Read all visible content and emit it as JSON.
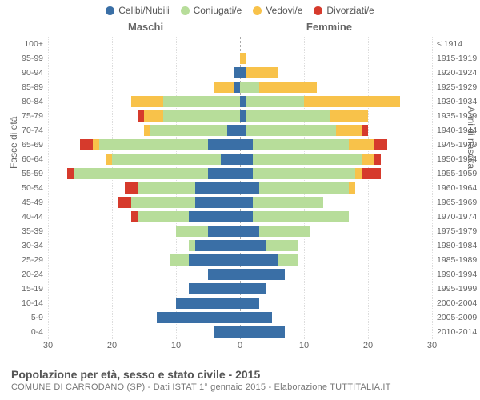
{
  "chart": {
    "type": "population-pyramid",
    "background_color": "#ffffff",
    "grid_color": "#dddddd",
    "axis_dash_color": "#aaaaaa",
    "text_color": "#666666",
    "legend": [
      {
        "label": "Celibi/Nubili",
        "color": "#3a6fa6"
      },
      {
        "label": "Coniugati/e",
        "color": "#b7dd9a"
      },
      {
        "label": "Vedovi/e",
        "color": "#f8c24a"
      },
      {
        "label": "Divorziati/e",
        "color": "#d63a2c"
      }
    ],
    "gender_labels": {
      "male": "Maschi",
      "female": "Femmine"
    },
    "y_left_title": "Fasce di età",
    "y_right_title": "Anni di nascita",
    "x_max": 30,
    "x_ticks": [
      30,
      20,
      10,
      0,
      10,
      20,
      30
    ],
    "title": "Popolazione per età, sesso e stato civile - 2015",
    "subtitle": "COMUNE DI CARRODANO (SP) - Dati ISTAT 1° gennaio 2015 - Elaborazione TUTTITALIA.IT",
    "rows": [
      {
        "age": "100+",
        "birth": "≤ 1914",
        "m": {
          "c": 0,
          "co": 0,
          "v": 0,
          "d": 0
        },
        "f": {
          "c": 0,
          "co": 0,
          "v": 0,
          "d": 0
        }
      },
      {
        "age": "95-99",
        "birth": "1915-1919",
        "m": {
          "c": 0,
          "co": 0,
          "v": 0,
          "d": 0
        },
        "f": {
          "c": 0,
          "co": 0,
          "v": 1,
          "d": 0
        }
      },
      {
        "age": "90-94",
        "birth": "1920-1924",
        "m": {
          "c": 1,
          "co": 0,
          "v": 0,
          "d": 0
        },
        "f": {
          "c": 1,
          "co": 0,
          "v": 5,
          "d": 0
        }
      },
      {
        "age": "85-89",
        "birth": "1925-1929",
        "m": {
          "c": 1,
          "co": 0,
          "v": 3,
          "d": 0
        },
        "f": {
          "c": 0,
          "co": 3,
          "v": 9,
          "d": 0
        }
      },
      {
        "age": "80-84",
        "birth": "1930-1934",
        "m": {
          "c": 0,
          "co": 12,
          "v": 5,
          "d": 0
        },
        "f": {
          "c": 1,
          "co": 9,
          "v": 15,
          "d": 0
        }
      },
      {
        "age": "75-79",
        "birth": "1935-1939",
        "m": {
          "c": 0,
          "co": 12,
          "v": 3,
          "d": 1
        },
        "f": {
          "c": 1,
          "co": 13,
          "v": 6,
          "d": 0
        }
      },
      {
        "age": "70-74",
        "birth": "1940-1944",
        "m": {
          "c": 2,
          "co": 12,
          "v": 1,
          "d": 0
        },
        "f": {
          "c": 1,
          "co": 14,
          "v": 4,
          "d": 1
        }
      },
      {
        "age": "65-69",
        "birth": "1945-1949",
        "m": {
          "c": 5,
          "co": 17,
          "v": 1,
          "d": 2
        },
        "f": {
          "c": 2,
          "co": 15,
          "v": 4,
          "d": 2
        }
      },
      {
        "age": "60-64",
        "birth": "1950-1954",
        "m": {
          "c": 3,
          "co": 17,
          "v": 1,
          "d": 0
        },
        "f": {
          "c": 2,
          "co": 17,
          "v": 2,
          "d": 1
        }
      },
      {
        "age": "55-59",
        "birth": "1955-1959",
        "m": {
          "c": 5,
          "co": 21,
          "v": 0,
          "d": 1
        },
        "f": {
          "c": 2,
          "co": 16,
          "v": 1,
          "d": 3
        }
      },
      {
        "age": "50-54",
        "birth": "1960-1964",
        "m": {
          "c": 7,
          "co": 9,
          "v": 0,
          "d": 2
        },
        "f": {
          "c": 3,
          "co": 14,
          "v": 1,
          "d": 0
        }
      },
      {
        "age": "45-49",
        "birth": "1965-1969",
        "m": {
          "c": 7,
          "co": 10,
          "v": 0,
          "d": 2
        },
        "f": {
          "c": 2,
          "co": 11,
          "v": 0,
          "d": 0
        }
      },
      {
        "age": "40-44",
        "birth": "1970-1974",
        "m": {
          "c": 8,
          "co": 8,
          "v": 0,
          "d": 1
        },
        "f": {
          "c": 2,
          "co": 15,
          "v": 0,
          "d": 0
        }
      },
      {
        "age": "35-39",
        "birth": "1975-1979",
        "m": {
          "c": 5,
          "co": 5,
          "v": 0,
          "d": 0
        },
        "f": {
          "c": 3,
          "co": 8,
          "v": 0,
          "d": 0
        }
      },
      {
        "age": "30-34",
        "birth": "1980-1984",
        "m": {
          "c": 7,
          "co": 1,
          "v": 0,
          "d": 0
        },
        "f": {
          "c": 4,
          "co": 5,
          "v": 0,
          "d": 0
        }
      },
      {
        "age": "25-29",
        "birth": "1985-1989",
        "m": {
          "c": 8,
          "co": 3,
          "v": 0,
          "d": 0
        },
        "f": {
          "c": 6,
          "co": 3,
          "v": 0,
          "d": 0
        }
      },
      {
        "age": "20-24",
        "birth": "1990-1994",
        "m": {
          "c": 5,
          "co": 0,
          "v": 0,
          "d": 0
        },
        "f": {
          "c": 7,
          "co": 0,
          "v": 0,
          "d": 0
        }
      },
      {
        "age": "15-19",
        "birth": "1995-1999",
        "m": {
          "c": 8,
          "co": 0,
          "v": 0,
          "d": 0
        },
        "f": {
          "c": 4,
          "co": 0,
          "v": 0,
          "d": 0
        }
      },
      {
        "age": "10-14",
        "birth": "2000-2004",
        "m": {
          "c": 10,
          "co": 0,
          "v": 0,
          "d": 0
        },
        "f": {
          "c": 3,
          "co": 0,
          "v": 0,
          "d": 0
        }
      },
      {
        "age": "5-9",
        "birth": "2005-2009",
        "m": {
          "c": 13,
          "co": 0,
          "v": 0,
          "d": 0
        },
        "f": {
          "c": 5,
          "co": 0,
          "v": 0,
          "d": 0
        }
      },
      {
        "age": "0-4",
        "birth": "2010-2014",
        "m": {
          "c": 4,
          "co": 0,
          "v": 0,
          "d": 0
        },
        "f": {
          "c": 7,
          "co": 0,
          "v": 0,
          "d": 0
        }
      }
    ]
  }
}
